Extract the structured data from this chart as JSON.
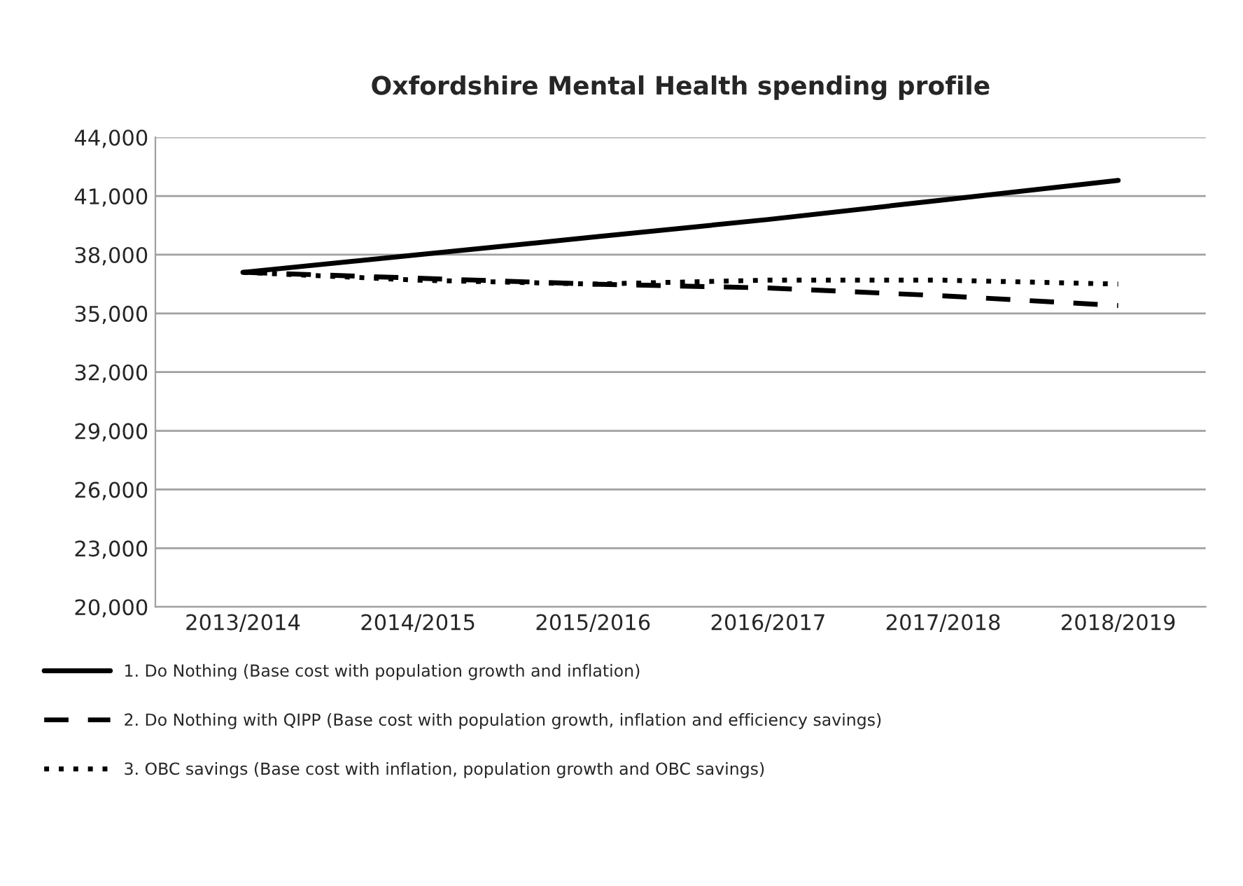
{
  "chart_data": {
    "type": "line",
    "title": "Oxfordshire Mental Health spending profile",
    "categories": [
      "2013/2014",
      "2014/2015",
      "2015/2016",
      "2016/2017",
      "2017/2018",
      "2018/2019"
    ],
    "series": [
      {
        "name": "1. Do Nothing (Base cost with population growth and inflation)",
        "color": "#000000",
        "line_style": "solid",
        "values": [
          37100,
          38000,
          38900,
          39800,
          40800,
          41800
        ]
      },
      {
        "name": "2. Do Nothing with QIPP (Base cost with population growth, inflation and efficiency savings)",
        "color": "#000000",
        "line_style": "dashed",
        "values": [
          37100,
          36800,
          36500,
          36300,
          35900,
          35400
        ]
      },
      {
        "name": "3. OBC savings (Base cost with inflation, population growth and OBC savings)",
        "color": "#000000",
        "line_style": "dotted",
        "values": [
          37100,
          36700,
          36500,
          36700,
          36700,
          36500
        ]
      }
    ],
    "ylim": [
      20000,
      44000
    ],
    "yticks": [
      {
        "value": 20000,
        "label": "20,000"
      },
      {
        "value": 23000,
        "label": "23,000"
      },
      {
        "value": 26000,
        "label": "26,000"
      },
      {
        "value": 29000,
        "label": "29,000"
      },
      {
        "value": 32000,
        "label": "32,000"
      },
      {
        "value": 35000,
        "label": "35,000"
      },
      {
        "value": 38000,
        "label": "38,000"
      },
      {
        "value": 41000,
        "label": "41,000"
      },
      {
        "value": 44000,
        "label": "44,000"
      }
    ],
    "grid": "y",
    "legend": "bottom"
  }
}
